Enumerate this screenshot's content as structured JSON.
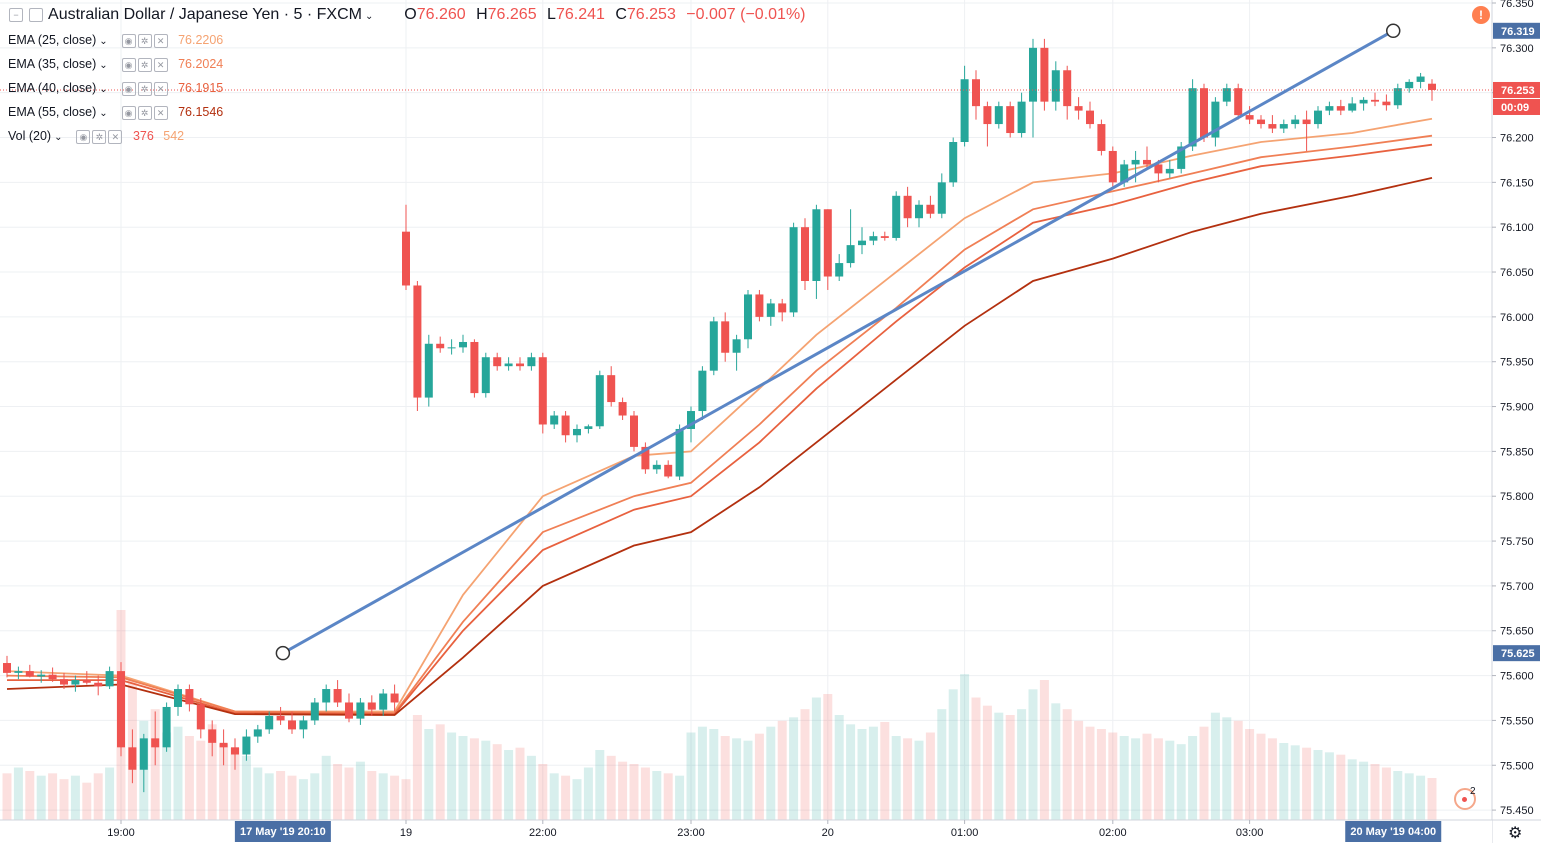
{
  "header": {
    "symbol": "Australian Dollar / Japanese Yen · 5 · FXCM",
    "open_label": "O",
    "open": "76.260",
    "high_label": "H",
    "high": "76.265",
    "low_label": "L",
    "low": "76.241",
    "close_label": "C",
    "close": "76.253",
    "change": "−0.007 (−0.01%)"
  },
  "indicators": [
    {
      "label": "EMA (25, close)",
      "value": "76.2206",
      "color": "#f5a372"
    },
    {
      "label": "EMA (35, close)",
      "value": "76.2024",
      "color": "#f07f55"
    },
    {
      "label": "EMA (40, close)",
      "value": "76.1915",
      "color": "#e8613f"
    },
    {
      "label": "EMA (55, close)",
      "value": "76.1546",
      "color": "#b3300f"
    }
  ],
  "volume": {
    "label": "Vol (20)",
    "value1": "376",
    "value2": "542",
    "color1": "#ef5350",
    "color2": "#f5a372"
  },
  "price_tags": {
    "trend_end": "76.319",
    "last": "76.253",
    "countdown": "00:09",
    "trend_start": "75.625"
  },
  "time_tags": {
    "crosshair_start": "17 May '19   20:10",
    "crosshair_end": "20 May '19   04:00"
  },
  "alert_icon": "exclamation-icon",
  "badge_count": "2",
  "colors": {
    "up": "#26a69a",
    "down": "#ef5350",
    "trendline": "#5b86c6",
    "tag": "#4a6fa5"
  },
  "chart_data": {
    "type": "candlestick",
    "timeframe": "5",
    "x_ticks": [
      "19:00",
      "19",
      "22:00",
      "23:00",
      "20",
      "01:00",
      "02:00",
      "03:00"
    ],
    "y_ticks": [
      "76.350",
      "76.300",
      "76.250",
      "76.200",
      "76.150",
      "76.100",
      "76.050",
      "76.000",
      "75.950",
      "75.900",
      "75.850",
      "75.800",
      "75.750",
      "75.700",
      "75.650",
      "75.600",
      "75.550",
      "75.500",
      "75.450"
    ],
    "ylim": [
      75.42,
      76.35
    ],
    "candles": [
      [
        0,
        75.614,
        75.622,
        75.598,
        75.603
      ],
      [
        1,
        75.603,
        75.61,
        75.596,
        75.605
      ],
      [
        2,
        75.605,
        75.612,
        75.598,
        75.599
      ],
      [
        3,
        75.599,
        75.606,
        75.592,
        75.601
      ],
      [
        4,
        75.601,
        75.609,
        75.593,
        75.596
      ],
      [
        5,
        75.596,
        75.603,
        75.585,
        75.59
      ],
      [
        6,
        75.59,
        75.6,
        75.582,
        75.595
      ],
      [
        7,
        75.595,
        75.605,
        75.59,
        75.592
      ],
      [
        8,
        75.592,
        75.6,
        75.578,
        75.588
      ],
      [
        9,
        75.588,
        75.61,
        75.585,
        75.605
      ],
      [
        10,
        75.605,
        75.615,
        75.51,
        75.52
      ],
      [
        11,
        75.52,
        75.54,
        75.48,
        75.495
      ],
      [
        12,
        75.495,
        75.535,
        75.47,
        75.53
      ],
      [
        13,
        75.53,
        75.56,
        75.5,
        75.52
      ],
      [
        14,
        75.52,
        75.57,
        75.515,
        75.565
      ],
      [
        15,
        75.565,
        75.59,
        75.555,
        75.585
      ],
      [
        16,
        75.585,
        75.59,
        75.56,
        75.568
      ],
      [
        17,
        75.568,
        75.575,
        75.53,
        75.54
      ],
      [
        18,
        75.54,
        75.55,
        75.51,
        75.525
      ],
      [
        19,
        75.525,
        75.54,
        75.5,
        75.52
      ],
      [
        20,
        75.52,
        75.53,
        75.495,
        75.512
      ],
      [
        21,
        75.512,
        75.54,
        75.505,
        75.532
      ],
      [
        22,
        75.532,
        75.545,
        75.525,
        75.54
      ],
      [
        23,
        75.54,
        75.56,
        75.535,
        75.555
      ],
      [
        24,
        75.555,
        75.565,
        75.545,
        75.55
      ],
      [
        25,
        75.55,
        75.56,
        75.535,
        75.54
      ],
      [
        26,
        75.54,
        75.555,
        75.53,
        75.55
      ],
      [
        27,
        75.55,
        75.575,
        75.545,
        75.57
      ],
      [
        28,
        75.57,
        75.59,
        75.56,
        75.585
      ],
      [
        29,
        75.585,
        75.595,
        75.565,
        75.57
      ],
      [
        30,
        75.57,
        75.58,
        75.548,
        75.552
      ],
      [
        31,
        75.552,
        75.575,
        75.545,
        75.57
      ],
      [
        32,
        75.57,
        75.578,
        75.555,
        75.562
      ],
      [
        33,
        75.562,
        75.585,
        75.555,
        75.58
      ],
      [
        34,
        75.58,
        75.59,
        75.56,
        75.57
      ],
      [
        35,
        76.095,
        76.125,
        76.03,
        76.035
      ],
      [
        36,
        76.035,
        76.04,
        75.895,
        75.91
      ],
      [
        37,
        75.91,
        75.98,
        75.9,
        75.97
      ],
      [
        38,
        75.97,
        75.978,
        75.96,
        75.965
      ],
      [
        39,
        75.965,
        75.975,
        75.958,
        75.966
      ],
      [
        40,
        75.966,
        75.98,
        75.96,
        75.972
      ],
      [
        41,
        75.972,
        75.975,
        75.91,
        75.915
      ],
      [
        42,
        75.915,
        75.96,
        75.91,
        75.955
      ],
      [
        43,
        75.955,
        75.96,
        75.94,
        75.945
      ],
      [
        44,
        75.945,
        75.955,
        75.94,
        75.948
      ],
      [
        45,
        75.948,
        75.955,
        75.94,
        75.945
      ],
      [
        46,
        75.945,
        75.96,
        75.94,
        75.955
      ],
      [
        47,
        75.955,
        75.96,
        75.87,
        75.88
      ],
      [
        48,
        75.88,
        75.895,
        75.875,
        75.89
      ],
      [
        49,
        75.89,
        75.895,
        75.86,
        75.868
      ],
      [
        50,
        75.868,
        75.88,
        75.86,
        75.875
      ],
      [
        51,
        75.875,
        75.88,
        75.87,
        75.878
      ],
      [
        52,
        75.878,
        75.94,
        75.875,
        75.935
      ],
      [
        53,
        75.935,
        75.945,
        75.9,
        75.905
      ],
      [
        54,
        75.905,
        75.91,
        75.885,
        75.89
      ],
      [
        55,
        75.89,
        75.895,
        75.85,
        75.855
      ],
      [
        56,
        75.855,
        75.86,
        75.825,
        75.83
      ],
      [
        57,
        75.83,
        75.84,
        75.825,
        75.835
      ],
      [
        58,
        75.835,
        75.84,
        75.82,
        75.822
      ],
      [
        59,
        75.822,
        75.88,
        75.818,
        75.875
      ],
      [
        60,
        75.875,
        75.9,
        75.86,
        75.895
      ],
      [
        61,
        75.895,
        75.945,
        75.885,
        75.94
      ],
      [
        62,
        75.94,
        76.0,
        75.935,
        75.995
      ],
      [
        63,
        75.995,
        76.005,
        75.95,
        75.96
      ],
      [
        64,
        75.96,
        75.98,
        75.94,
        75.975
      ],
      [
        65,
        75.975,
        76.03,
        75.965,
        76.025
      ],
      [
        66,
        76.025,
        76.03,
        75.995,
        76.0
      ],
      [
        67,
        76.0,
        76.02,
        75.99,
        76.015
      ],
      [
        68,
        76.015,
        76.02,
        75.995,
        76.005
      ],
      [
        69,
        76.005,
        76.105,
        76.0,
        76.1
      ],
      [
        70,
        76.1,
        76.11,
        76.03,
        76.04
      ],
      [
        71,
        76.04,
        76.125,
        76.02,
        76.12
      ],
      [
        72,
        76.12,
        76.12,
        76.03,
        76.045
      ],
      [
        73,
        76.045,
        76.07,
        76.04,
        76.06
      ],
      [
        74,
        76.06,
        76.12,
        76.055,
        76.08
      ],
      [
        75,
        76.08,
        76.1,
        76.07,
        76.085
      ],
      [
        76,
        76.085,
        76.095,
        76.08,
        76.09
      ],
      [
        77,
        76.09,
        76.095,
        76.085,
        76.088
      ],
      [
        78,
        76.088,
        76.14,
        76.085,
        76.135
      ],
      [
        79,
        76.135,
        76.145,
        76.1,
        76.11
      ],
      [
        80,
        76.11,
        76.13,
        76.1,
        76.125
      ],
      [
        81,
        76.125,
        76.135,
        76.11,
        76.115
      ],
      [
        82,
        76.115,
        76.16,
        76.11,
        76.15
      ],
      [
        83,
        76.15,
        76.2,
        76.145,
        76.195
      ],
      [
        84,
        76.195,
        76.28,
        76.19,
        76.265
      ],
      [
        85,
        76.265,
        76.275,
        76.22,
        76.235
      ],
      [
        86,
        76.235,
        76.24,
        76.19,
        76.215
      ],
      [
        87,
        76.215,
        76.24,
        76.21,
        76.235
      ],
      [
        88,
        76.235,
        76.24,
        76.2,
        76.205
      ],
      [
        89,
        76.205,
        76.25,
        76.2,
        76.24
      ],
      [
        90,
        76.24,
        76.31,
        76.2,
        76.3
      ],
      [
        91,
        76.3,
        76.31,
        76.23,
        76.24
      ],
      [
        92,
        76.24,
        76.285,
        76.23,
        76.275
      ],
      [
        93,
        76.275,
        76.28,
        76.22,
        76.235
      ],
      [
        94,
        76.235,
        76.245,
        76.22,
        76.23
      ],
      [
        95,
        76.23,
        76.24,
        76.21,
        76.215
      ],
      [
        96,
        76.215,
        76.22,
        76.18,
        76.185
      ],
      [
        97,
        76.185,
        76.19,
        76.145,
        76.15
      ],
      [
        98,
        76.15,
        76.175,
        76.145,
        76.17
      ],
      [
        99,
        76.17,
        76.185,
        76.15,
        76.175
      ],
      [
        100,
        76.175,
        76.19,
        76.165,
        76.17
      ],
      [
        101,
        76.17,
        76.175,
        76.15,
        76.16
      ],
      [
        102,
        76.16,
        76.175,
        76.155,
        76.165
      ],
      [
        103,
        76.165,
        76.195,
        76.16,
        76.19
      ],
      [
        104,
        76.19,
        76.265,
        76.185,
        76.255
      ],
      [
        105,
        76.255,
        76.26,
        76.195,
        76.2
      ],
      [
        106,
        76.2,
        76.245,
        76.19,
        76.24
      ],
      [
        107,
        76.24,
        76.26,
        76.235,
        76.255
      ],
      [
        108,
        76.255,
        76.26,
        76.22,
        76.225
      ],
      [
        109,
        76.225,
        76.235,
        76.215,
        76.22
      ],
      [
        110,
        76.22,
        76.225,
        76.21,
        76.215
      ],
      [
        111,
        76.215,
        76.225,
        76.205,
        76.21
      ],
      [
        112,
        76.21,
        76.22,
        76.205,
        76.215
      ],
      [
        113,
        76.215,
        76.225,
        76.21,
        76.22
      ],
      [
        114,
        76.22,
        76.23,
        76.185,
        76.215
      ],
      [
        115,
        76.215,
        76.235,
        76.21,
        76.23
      ],
      [
        116,
        76.23,
        76.24,
        76.225,
        76.235
      ],
      [
        117,
        76.235,
        76.242,
        76.225,
        76.23
      ],
      [
        118,
        76.23,
        76.245,
        76.228,
        76.238
      ],
      [
        119,
        76.238,
        76.245,
        76.23,
        76.242
      ],
      [
        120,
        76.242,
        76.25,
        76.235,
        76.24
      ],
      [
        121,
        76.24,
        76.248,
        76.23,
        76.236
      ],
      [
        122,
        76.236,
        76.26,
        76.232,
        76.255
      ],
      [
        123,
        76.255,
        76.265,
        76.25,
        76.262
      ],
      [
        124,
        76.262,
        76.272,
        76.255,
        76.268
      ],
      [
        125,
        76.26,
        76.265,
        76.241,
        76.253
      ]
    ],
    "ema_series": [
      {
        "name": "EMA (25, close)",
        "values": [
          [
            0,
            75.605
          ],
          [
            10,
            75.6
          ],
          [
            20,
            75.56
          ],
          [
            34,
            75.56
          ],
          [
            40,
            75.69
          ],
          [
            47,
            75.8
          ],
          [
            55,
            75.845
          ],
          [
            60,
            75.85
          ],
          [
            66,
            75.92
          ],
          [
            71,
            75.98
          ],
          [
            78,
            76.05
          ],
          [
            84,
            76.11
          ],
          [
            90,
            76.15
          ],
          [
            97,
            76.16
          ],
          [
            104,
            76.18
          ],
          [
            110,
            76.195
          ],
          [
            118,
            76.205
          ],
          [
            125,
            76.221
          ]
        ]
      },
      {
        "name": "EMA (35, close)",
        "values": [
          [
            0,
            75.6
          ],
          [
            10,
            75.598
          ],
          [
            20,
            75.56
          ],
          [
            34,
            75.558
          ],
          [
            40,
            75.66
          ],
          [
            47,
            75.76
          ],
          [
            55,
            75.8
          ],
          [
            60,
            75.815
          ],
          [
            66,
            75.88
          ],
          [
            71,
            75.94
          ],
          [
            78,
            76.01
          ],
          [
            84,
            76.075
          ],
          [
            90,
            76.12
          ],
          [
            97,
            76.14
          ],
          [
            104,
            76.16
          ],
          [
            110,
            76.178
          ],
          [
            118,
            76.19
          ],
          [
            125,
            76.202
          ]
        ]
      },
      {
        "name": "EMA (40, close)",
        "values": [
          [
            0,
            75.595
          ],
          [
            10,
            75.595
          ],
          [
            20,
            75.558
          ],
          [
            34,
            75.557
          ],
          [
            40,
            75.65
          ],
          [
            47,
            75.74
          ],
          [
            55,
            75.785
          ],
          [
            60,
            75.8
          ],
          [
            66,
            75.86
          ],
          [
            71,
            75.92
          ],
          [
            78,
            75.995
          ],
          [
            84,
            76.055
          ],
          [
            90,
            76.105
          ],
          [
            97,
            76.125
          ],
          [
            104,
            76.15
          ],
          [
            110,
            76.168
          ],
          [
            118,
            76.18
          ],
          [
            125,
            76.192
          ]
        ]
      },
      {
        "name": "EMA (55, close)",
        "values": [
          [
            0,
            75.585
          ],
          [
            10,
            75.59
          ],
          [
            20,
            75.557
          ],
          [
            34,
            75.556
          ],
          [
            40,
            75.62
          ],
          [
            47,
            75.7
          ],
          [
            55,
            75.745
          ],
          [
            60,
            75.76
          ],
          [
            66,
            75.81
          ],
          [
            71,
            75.86
          ],
          [
            78,
            75.93
          ],
          [
            84,
            75.99
          ],
          [
            90,
            76.04
          ],
          [
            97,
            76.065
          ],
          [
            104,
            76.095
          ],
          [
            110,
            76.115
          ],
          [
            118,
            76.135
          ],
          [
            125,
            76.155
          ]
        ]
      }
    ],
    "volumes": [
      40,
      45,
      42,
      38,
      40,
      35,
      38,
      32,
      40,
      45,
      180,
      120,
      85,
      95,
      75,
      80,
      72,
      68,
      82,
      65,
      62,
      55,
      45,
      40,
      42,
      38,
      35,
      40,
      55,
      48,
      45,
      50,
      42,
      40,
      38,
      35,
      90,
      78,
      82,
      75,
      72,
      70,
      68,
      65,
      60,
      62,
      55,
      48,
      40,
      38,
      35,
      45,
      60,
      55,
      50,
      48,
      45,
      42,
      40,
      38,
      75,
      80,
      78,
      72,
      70,
      68,
      74,
      80,
      85,
      88,
      95,
      105,
      108,
      90,
      82,
      78,
      80,
      84,
      72,
      70,
      68,
      75,
      95,
      112,
      125,
      105,
      98,
      92,
      90,
      95,
      112,
      120,
      100,
      95,
      85,
      80,
      78,
      75,
      72,
      70,
      74,
      70,
      68,
      65,
      72,
      80,
      92,
      88,
      85,
      78,
      74,
      70,
      66,
      64,
      62,
      60,
      58,
      56,
      52,
      50,
      48,
      45,
      42,
      40,
      38,
      36
    ]
  }
}
